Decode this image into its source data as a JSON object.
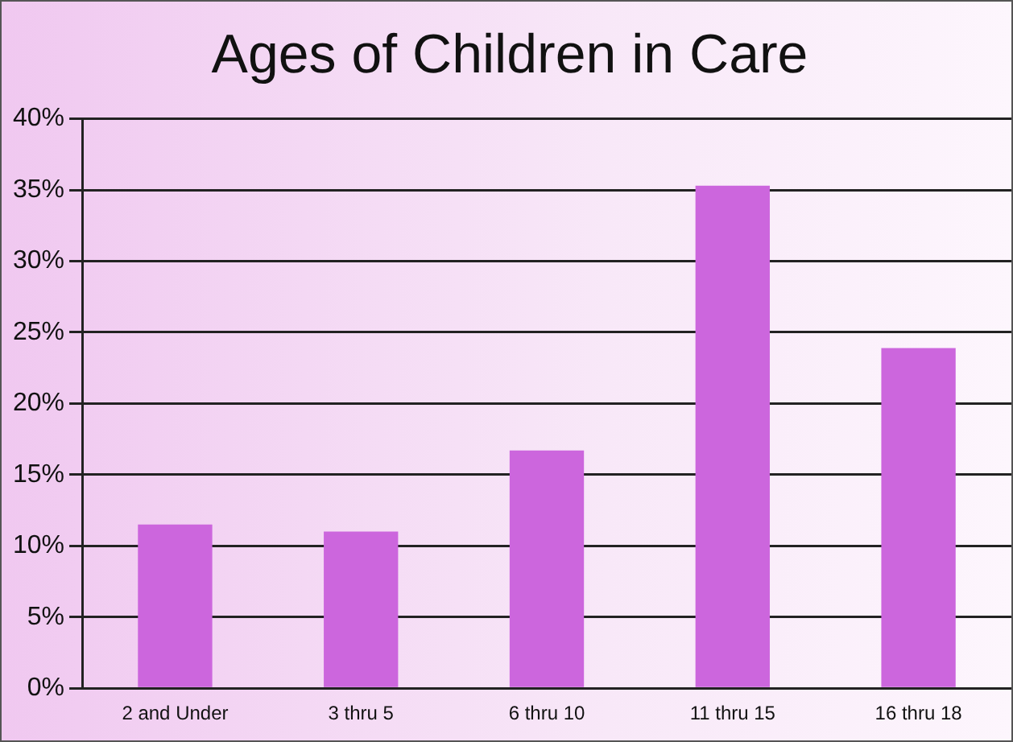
{
  "chart_data": {
    "type": "bar",
    "title": "Ages of Children in Care",
    "categories": [
      "2 and Under",
      "3 thru 5",
      "6 thru 10",
      "11 thru 15",
      "16 thru 18"
    ],
    "values": [
      11.5,
      11.0,
      16.7,
      35.3,
      23.9
    ],
    "color": "#cc66dd",
    "ylim": [
      0,
      40
    ],
    "yticks": [
      {
        "value": 0,
        "label": "0%"
      },
      {
        "value": 5,
        "label": "5%"
      },
      {
        "value": 10,
        "label": "10%"
      },
      {
        "value": 15,
        "label": "15%"
      },
      {
        "value": 20,
        "label": "20%"
      },
      {
        "value": 25,
        "label": "25%"
      },
      {
        "value": 30,
        "label": "30%"
      },
      {
        "value": 35,
        "label": "35%"
      },
      {
        "value": 40,
        "label": "40%"
      }
    ],
    "grid": "y",
    "legend": false
  }
}
